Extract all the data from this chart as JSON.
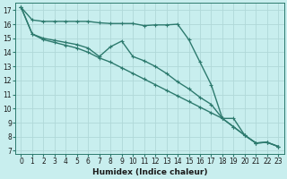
{
  "xlabel": "Humidex (Indice chaleur)",
  "bg_color": "#c8eeee",
  "grid_color": "#b0d8d8",
  "line_color": "#2d7a6e",
  "line_width": 1.0,
  "series": [
    {
      "x": [
        0,
        1,
        2,
        3,
        4,
        5,
        6,
        7,
        8,
        9,
        10,
        11,
        12,
        13,
        14,
        15,
        16,
        17,
        18,
        19,
        20,
        21,
        22,
        23
      ],
      "y": [
        17.2,
        16.3,
        16.2,
        16.2,
        16.2,
        16.2,
        16.2,
        16.1,
        16.05,
        16.05,
        16.05,
        15.9,
        15.95,
        15.95,
        16.0,
        14.9,
        13.3,
        11.7,
        9.3,
        9.3,
        8.1,
        7.55,
        7.6,
        7.3
      ]
    },
    {
      "x": [
        0,
        1,
        2,
        3,
        4,
        5,
        6,
        7,
        8,
        9,
        10,
        11,
        12,
        13,
        14,
        15,
        16,
        17,
        18,
        19,
        20,
        21,
        22,
        23
      ],
      "y": [
        17.2,
        15.3,
        15.0,
        14.85,
        14.7,
        14.55,
        14.3,
        13.7,
        14.4,
        14.8,
        13.7,
        13.4,
        13.0,
        12.5,
        11.9,
        11.4,
        10.8,
        10.3,
        9.3,
        8.7,
        8.1,
        7.55,
        7.6,
        7.3
      ]
    },
    {
      "x": [
        0,
        1,
        2,
        3,
        4,
        5,
        6,
        7,
        8,
        9,
        10,
        11,
        12,
        13,
        14,
        15,
        16,
        17,
        18,
        19,
        20,
        21,
        22,
        23
      ],
      "y": [
        17.2,
        15.3,
        14.9,
        14.7,
        14.5,
        14.3,
        14.0,
        13.6,
        13.3,
        12.9,
        12.5,
        12.1,
        11.7,
        11.3,
        10.9,
        10.5,
        10.1,
        9.7,
        9.3,
        8.7,
        8.1,
        7.55,
        7.6,
        7.3
      ]
    }
  ],
  "xlim": [
    -0.5,
    23.5
  ],
  "ylim": [
    6.8,
    17.5
  ],
  "yticks": [
    7,
    8,
    9,
    10,
    11,
    12,
    13,
    14,
    15,
    16,
    17
  ],
  "xticks": [
    0,
    1,
    2,
    3,
    4,
    5,
    6,
    7,
    8,
    9,
    10,
    11,
    12,
    13,
    14,
    15,
    16,
    17,
    18,
    19,
    20,
    21,
    22,
    23
  ],
  "xlabel_fontsize": 6.5,
  "tick_fontsize": 5.5,
  "markersize": 3.0,
  "markeredgewidth": 0.8
}
